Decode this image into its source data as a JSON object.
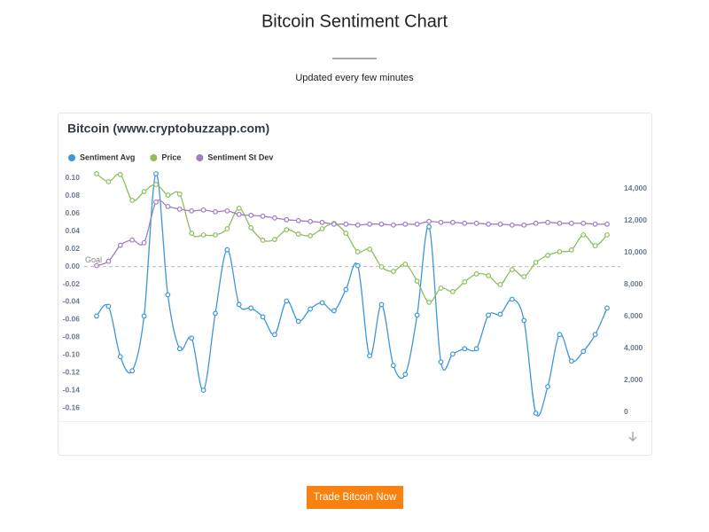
{
  "header": {
    "title": "Bitcoin Sentiment Chart",
    "subtitle": "Updated every few minutes"
  },
  "chart_data": {
    "type": "line",
    "title": "Bitcoin (www.cryptobuzzapp.com)",
    "legend": "top-left",
    "series": [
      {
        "name": "Sentiment Avg",
        "color": "#3d97d9",
        "values": [
          -0.056,
          -0.045,
          -0.102,
          -0.118,
          -0.056,
          0.105,
          -0.032,
          -0.093,
          -0.081,
          -0.14,
          -0.053,
          0.019,
          -0.043,
          -0.047,
          -0.057,
          -0.077,
          -0.039,
          -0.062,
          -0.048,
          -0.041,
          -0.05,
          -0.026,
          0.001,
          -0.101,
          -0.043,
          -0.112,
          -0.122,
          -0.055,
          0.045,
          -0.108,
          -0.099,
          -0.093,
          -0.093,
          -0.055,
          -0.054,
          -0.037,
          -0.061,
          -0.166,
          -0.136,
          -0.077,
          -0.107,
          -0.096,
          -0.077,
          -0.047
        ]
      },
      {
        "name": "Price",
        "color": "#8dbf5a",
        "axis": "y2",
        "values": [
          14950,
          14450,
          14900,
          13280,
          13830,
          14280,
          13610,
          13670,
          11220,
          11110,
          11110,
          11500,
          12780,
          11560,
          10780,
          10830,
          11440,
          11170,
          11060,
          11500,
          11830,
          11220,
          10060,
          10220,
          9110,
          8830,
          9280,
          8220,
          6890,
          7780,
          7560,
          8170,
          8670,
          8560,
          8000,
          8940,
          8500,
          9390,
          9830,
          10060,
          10170,
          11110,
          10440,
          11110
        ]
      },
      {
        "name": "Sentiment St Dev",
        "color": "#a07cc5",
        "values": [
          0.001,
          0.006,
          0.024,
          0.03,
          0.027,
          0.073,
          0.068,
          0.065,
          0.063,
          0.064,
          0.062,
          0.063,
          0.059,
          0.058,
          0.057,
          0.055,
          0.053,
          0.052,
          0.051,
          0.05,
          0.048,
          0.048,
          0.047,
          0.048,
          0.048,
          0.047,
          0.048,
          0.048,
          0.051,
          0.05,
          0.05,
          0.049,
          0.049,
          0.048,
          0.048,
          0.047,
          0.047,
          0.049,
          0.05,
          0.049,
          0.049,
          0.049,
          0.048,
          0.048
        ]
      }
    ],
    "ylim": [
      -0.17,
      0.106
    ],
    "yticks": [
      {
        "value": 0.1,
        "label": "0.10"
      },
      0.08,
      0.06,
      0.04,
      0.02,
      {
        "value": 0,
        "label": "0.00"
      },
      -0.02,
      -0.04,
      -0.06,
      -0.08,
      {
        "value": -0.1,
        "label": "-0.10"
      },
      -0.12,
      -0.14,
      -0.16
    ],
    "y2lim": [
      -280,
      15000
    ],
    "y2ticks": [
      0,
      {
        "value": 2000,
        "label": "2,000"
      },
      {
        "value": 4000,
        "label": "4,000"
      },
      {
        "value": 6000,
        "label": "6,000"
      },
      {
        "value": 8000,
        "label": "8,000"
      },
      {
        "value": 10000,
        "label": "10,000"
      },
      {
        "value": 12000,
        "label": "12,000"
      },
      {
        "value": 14000,
        "label": "14,000"
      }
    ],
    "goal": {
      "label": "Goal",
      "value": 0
    }
  },
  "button": {
    "label": "Trade Bitcoin Now"
  }
}
